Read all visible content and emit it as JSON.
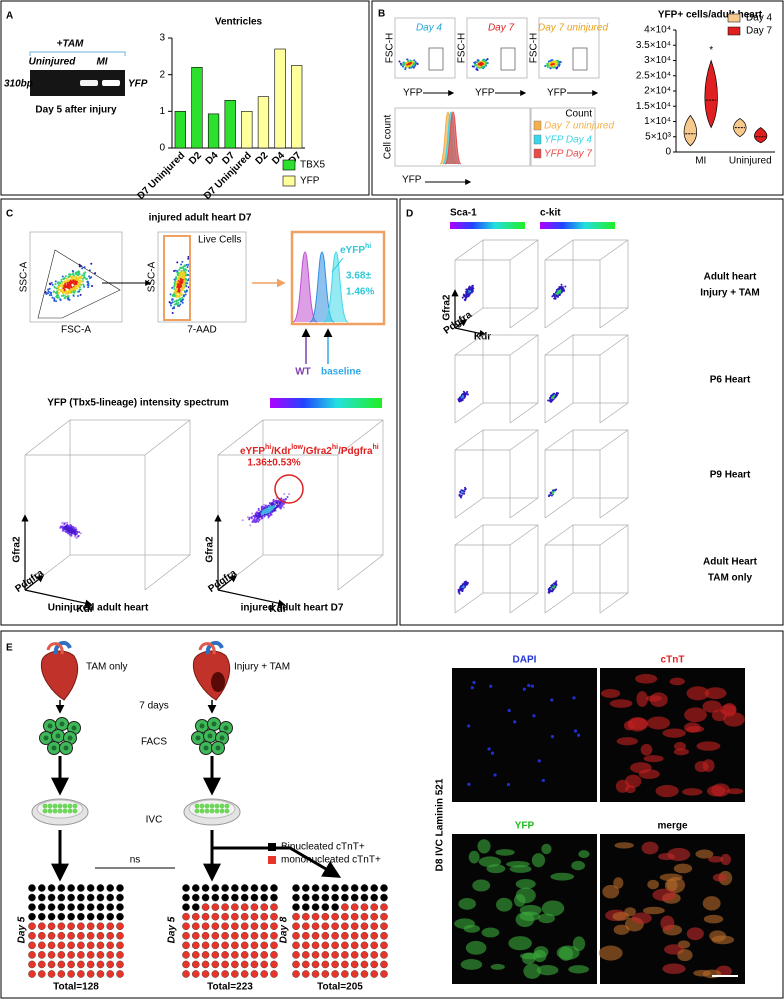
{
  "panels": {
    "A": {
      "letter": "A",
      "gel": {
        "treatment": "+TAM",
        "lanes": [
          "Uninjured",
          "MI"
        ],
        "band_size": "310bp",
        "band_label": "YFP",
        "caption": "Day 5 after injury"
      },
      "chart": {
        "type": "bar",
        "title": "Ventricles",
        "categories": [
          "D7 Uninjured",
          "D2",
          "D4",
          "D7",
          "D7 Uninjured",
          "D2",
          "D4",
          "D7"
        ],
        "series": [
          {
            "name": "TBX5",
            "color": "#2ee02e",
            "values": [
              1,
              2.2,
              0.93,
              1.3,
              null,
              null,
              null,
              null
            ]
          },
          {
            "name": "YFP",
            "color": "#ffff9c",
            "values": [
              null,
              null,
              null,
              null,
              1,
              1.4,
              2.7,
              2.25
            ]
          }
        ],
        "ylim": [
          0,
          3
        ],
        "yticks": [
          0,
          1,
          2,
          3
        ]
      }
    },
    "B": {
      "letter": "B",
      "flow": {
        "plots": [
          {
            "label": "Day 4",
            "color": "#1fa9d6"
          },
          {
            "label": "Day 7",
            "color": "#e02020"
          },
          {
            "label": "Day 7 uninjured",
            "color": "#e8a21c"
          }
        ],
        "y_axis": "FSC-H",
        "x_axis": "YFP"
      },
      "histogram": {
        "y_axis": "Cell count",
        "x_axis": "YFP",
        "legend_title": "Count",
        "legend": [
          {
            "name": "Day 7 uninjured",
            "color": "#f5b04a"
          },
          {
            "name": "YFP Day 4",
            "color": "#38d6e8"
          },
          {
            "name": "YFP Day 7",
            "color": "#e84a4a"
          }
        ]
      },
      "chart": {
        "type": "violin",
        "title": "YFP+ cells/adult heart",
        "categories": [
          "MI",
          "Uninjured"
        ],
        "series": [
          {
            "name": "Day 4",
            "color": "#f7c98c",
            "values": [
              6000,
              8000
            ],
            "ranges": [
              [
                2000,
                12000
              ],
              [
                5000,
                11000
              ]
            ]
          },
          {
            "name": "Day 7",
            "color": "#e02020",
            "values": [
              17000,
              5000
            ],
            "ranges": [
              [
                8000,
                30000
              ],
              [
                3000,
                8000
              ]
            ]
          }
        ],
        "ylim": [
          0,
          40000
        ],
        "yticks": [
          0,
          {
            "value": 5000,
            "label": "5×10³"
          },
          {
            "value": 10000,
            "label": "1×10⁴"
          },
          {
            "value": 15000,
            "label": "1.5×10⁴"
          },
          {
            "value": 20000,
            "label": "2×10⁴"
          },
          {
            "value": 25000,
            "label": "2.5×10⁴"
          },
          {
            "value": 30000,
            "label": "3×10⁴"
          },
          {
            "value": 35000,
            "label": "3.5×10⁴"
          },
          {
            "value": 40000,
            "label": "4×10⁴"
          }
        ],
        "annotation": "*"
      }
    },
    "C": {
      "letter": "C",
      "title": "injured adult heart D7",
      "gates": [
        "Live Cells"
      ],
      "axes": [
        "SSC-A",
        "FSC-A",
        "7-AAD"
      ],
      "peak_label": [
        "eYFP",
        "hi"
      ],
      "peak_value": [
        "3.68±",
        "1.46%"
      ],
      "wt": "WT",
      "baseline": "baseline",
      "spectrum_title": "YFP (Tbx5-lineage) intensity spectrum",
      "axis3d": [
        "Gfra2",
        "Pdgfra",
        "Kdr"
      ],
      "gate_label": [
        "eYFP",
        "hi",
        "/Kdr",
        "low",
        "/Gfra2",
        "hi",
        "/Pdgfra",
        "hi"
      ],
      "gate_value": "1.36±0.53%",
      "captions": [
        "Uninjured adult heart",
        "injured adult heart D7"
      ]
    },
    "D": {
      "letter": "D",
      "columns": [
        "Sca-1",
        "c-kit"
      ],
      "axis3d": [
        "Gfra2",
        "Pdgfra",
        "Kdr"
      ],
      "rows": [
        [
          "Adult heart",
          "Injury + TAM"
        ],
        [
          "P6 Heart"
        ],
        [
          "P9 Heart"
        ],
        [
          "Adult Heart",
          "TAM only"
        ]
      ]
    },
    "E": {
      "letter": "E",
      "groups": [
        "TAM only",
        "Injury + TAM"
      ],
      "steps": [
        "7 days",
        "FACS",
        "IVC"
      ],
      "legend": [
        {
          "name": "Binucleated cTnT+",
          "color": "#000000"
        },
        {
          "name": "mononucleated cTnT+",
          "color": "#e8352a"
        }
      ],
      "comparison": "ns",
      "grids": [
        {
          "day": "Day 5",
          "total": "Total=128",
          "binucleated_percent": 40
        },
        {
          "day": "Day 5",
          "total": "Total=223",
          "binucleated_percent": 22
        },
        {
          "day": "Day 8",
          "total": "Total=205",
          "binucleated_percent": 25
        }
      ],
      "images": [
        {
          "label": "DAPI",
          "color": "#2233dd"
        },
        {
          "label": "cTnT",
          "color": "#e02222"
        },
        {
          "label": "YFP",
          "color": "#22bb22"
        },
        {
          "label": "merge",
          "color": "#000000"
        }
      ],
      "image_side_label": "D8 IVC Laminin 521"
    }
  }
}
